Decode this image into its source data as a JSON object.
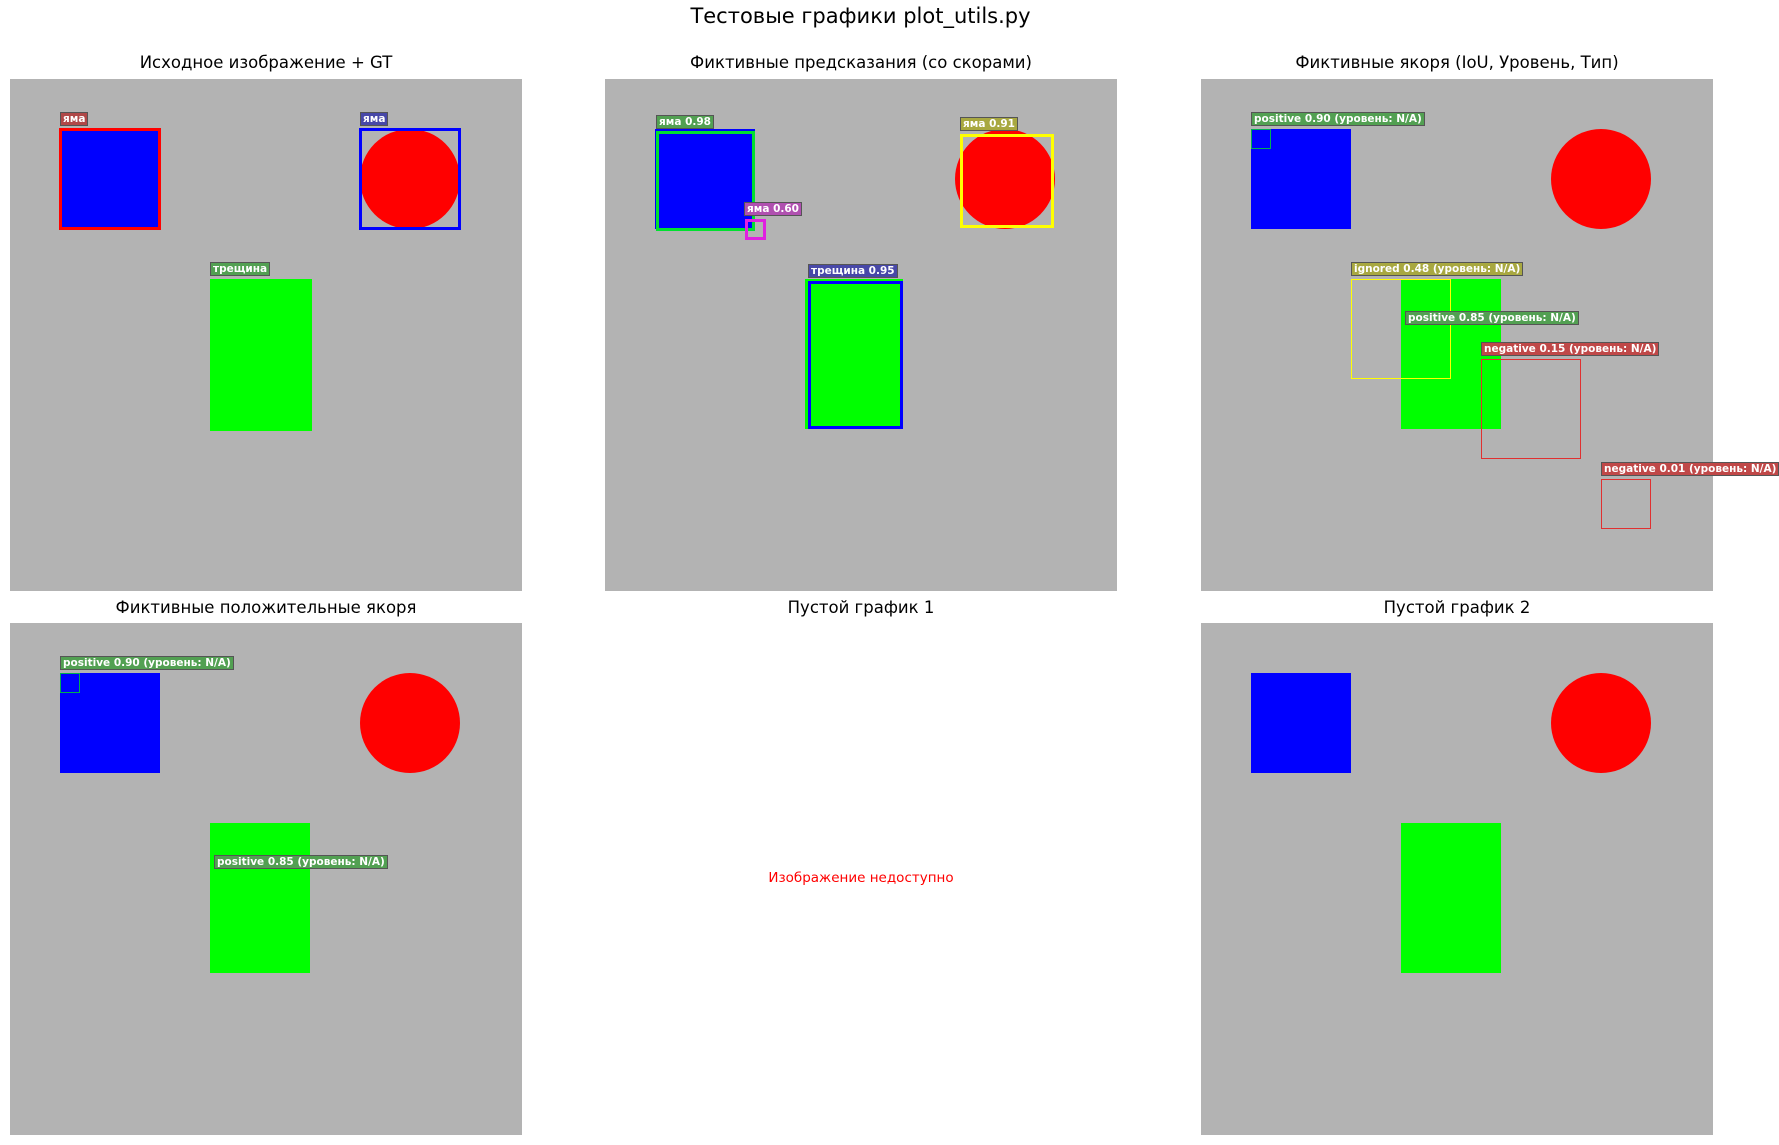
{
  "suptitle": "Тестовые графики plot_utils.py",
  "colors": {
    "background": "#b3b3b3",
    "pit_square": "#0000ff",
    "pit_circle": "#ff0000",
    "crack_rect": "#00ff00",
    "positive": "#4caf50",
    "ignored": "#ffff00",
    "negative": "#e03030",
    "low_score": "#e020e0"
  },
  "panels": [
    {
      "title": "Исходное изображение + GT",
      "labels": {
        "pit_square": "яма",
        "pit_circle": "яма",
        "crack": "трещина"
      }
    },
    {
      "title": "Фиктивные предсказания (со скорами)",
      "labels": {
        "pit_square": "яма 0.98",
        "pit_small": "яма 0.60",
        "pit_circle": "яма 0.91",
        "crack": "трещина 0.95"
      }
    },
    {
      "title": "Фиктивные якоря (IoU, Уровень, Тип)",
      "labels": {
        "a1": "positive 0.90 (уровень: N/A)",
        "a2": "ignored 0.48 (уровень: N/A)",
        "a3": "positive 0.85 (уровень: N/A)",
        "a4": "negative 0.15 (уровень: N/A)",
        "a5": "negative 0.01 (уровень: N/A)"
      }
    },
    {
      "title": "Фиктивные положительные якоря",
      "labels": {
        "a1": "positive 0.90 (уровень: N/A)",
        "a2": "positive 0.85 (уровень: N/A)"
      }
    },
    {
      "title": "Пустой график 1",
      "message": "Изображение недоступно"
    },
    {
      "title": "Пустой график 2"
    }
  ]
}
